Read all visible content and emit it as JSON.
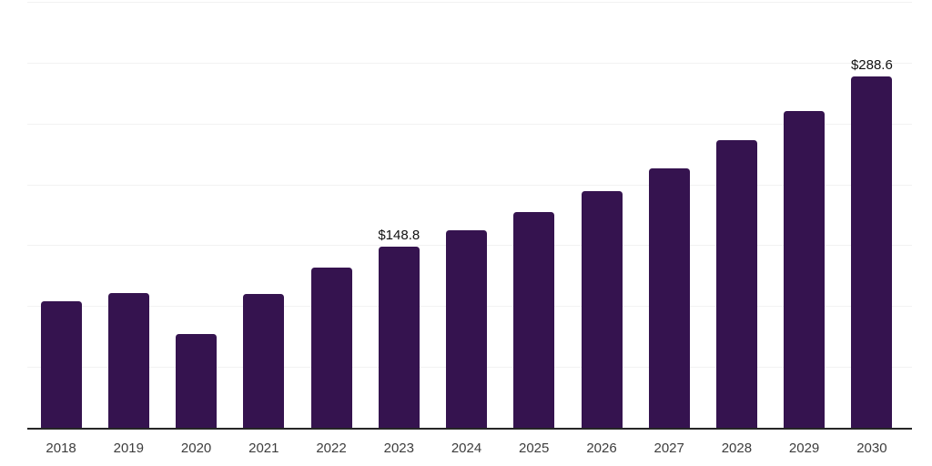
{
  "chart_data": {
    "type": "bar",
    "title": "",
    "xlabel": "",
    "ylabel": "",
    "categories": [
      "2018",
      "2019",
      "2020",
      "2021",
      "2022",
      "2023",
      "2024",
      "2025",
      "2026",
      "2027",
      "2028",
      "2029",
      "2030"
    ],
    "values": [
      103.7,
      110.4,
      76.9,
      109.6,
      132.0,
      148.8,
      162.5,
      177.4,
      194.4,
      213.0,
      236.0,
      260.5,
      288.6
    ],
    "bar_labels": [
      "",
      "",
      "",
      "",
      "",
      "$148.8",
      "",
      "",
      "",
      "",
      "",
      "",
      "$288.6"
    ],
    "ylim": [
      0,
      350
    ],
    "grid_step": 50,
    "grid": true,
    "legend": false,
    "y_tick_labels_visible": false,
    "colors": {
      "bar": "#35134F",
      "gridline": "#f2f2f2",
      "axis_line": "#262626",
      "value_label": "#111111",
      "tick_label": "#3d3d3d",
      "background": "#ffffff"
    }
  }
}
